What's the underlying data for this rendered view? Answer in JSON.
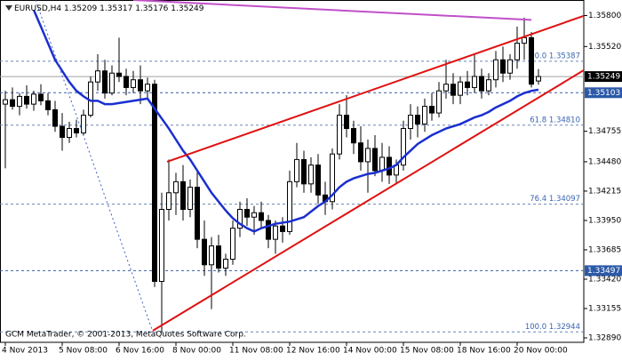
{
  "chart_data": {
    "type": "candlestick",
    "symbol": "EURUSD,H4",
    "footer": "GCM MetaTrader, © 2001-2013, MetaQuotes Software Corp.",
    "categories": [
      "4 Nov 2013",
      null,
      null,
      null,
      null,
      null,
      null,
      null,
      "5 Nov 08:00",
      null,
      null,
      null,
      null,
      null,
      null,
      null,
      "6 Nov 16:00",
      null,
      null,
      null,
      null,
      null,
      null,
      null,
      "8 Nov 00:00",
      null,
      null,
      null,
      null,
      null,
      null,
      null,
      "11 Nov 08:00",
      null,
      null,
      null,
      null,
      null,
      null,
      null,
      "12 Nov 16:00",
      null,
      null,
      null,
      null,
      null,
      null,
      null,
      "14 Nov 00:00",
      null,
      null,
      null,
      null,
      null,
      null,
      null,
      "15 Nov 08:00",
      null,
      null,
      null,
      null,
      null,
      null,
      null,
      "18 Nov 16:00",
      null,
      null,
      null,
      null,
      null,
      null,
      null,
      "20 Nov 00:00",
      null,
      null,
      null
    ],
    "open": [
      1.35,
      1.3504,
      1.3498,
      1.3507,
      1.35,
      1.3509,
      1.3503,
      1.3495,
      1.348,
      1.347,
      1.3478,
      1.3474,
      1.349,
      1.352,
      1.353,
      1.351,
      1.3528,
      1.3525,
      1.3515,
      1.3522,
      1.3512,
      1.3518,
      1.334,
      1.3405,
      1.342,
      1.343,
      1.3405,
      1.3425,
      1.3378,
      1.3355,
      1.3372,
      1.3352,
      1.336,
      1.3388,
      1.3405,
      1.3398,
      1.3402,
      1.3395,
      1.3378,
      1.339,
      1.3385,
      1.343,
      1.345,
      1.3428,
      1.3445,
      1.3418,
      1.3412,
      1.3455,
      1.349,
      1.3478,
      1.3465,
      1.3448,
      1.346,
      1.344,
      1.3452,
      1.3436,
      1.3445,
      1.3478,
      1.349,
      1.3482,
      1.3498,
      1.3492,
      1.3512,
      1.3518,
      1.3508,
      1.352,
      1.3515,
      1.3525,
      1.3512,
      1.3522,
      1.354,
      1.3528,
      1.354,
      1.3555,
      1.356,
      1.35209
    ],
    "high": [
      1.3512,
      1.3515,
      1.351,
      1.3517,
      1.3512,
      1.3518,
      1.351,
      1.3503,
      1.3492,
      1.3484,
      1.3486,
      1.3495,
      1.3525,
      1.3545,
      1.354,
      1.3535,
      1.356,
      1.3532,
      1.353,
      1.3535,
      1.3524,
      1.3522,
      1.342,
      1.345,
      1.3438,
      1.3445,
      1.3432,
      1.344,
      1.3395,
      1.338,
      1.3382,
      1.3365,
      1.3395,
      1.3412,
      1.3415,
      1.3408,
      1.3412,
      1.34,
      1.3395,
      1.3398,
      1.344,
      1.3465,
      1.3458,
      1.3452,
      1.3455,
      1.343,
      1.346,
      1.35,
      1.3508,
      1.3485,
      1.348,
      1.3468,
      1.3472,
      1.3465,
      1.3462,
      1.345,
      1.3485,
      1.35,
      1.3498,
      1.3505,
      1.351,
      1.352,
      1.354,
      1.3528,
      1.3525,
      1.353,
      1.3545,
      1.3532,
      1.3528,
      1.3548,
      1.3552,
      1.3545,
      1.357,
      1.3578,
      1.3565,
      1.35317
    ],
    "low": [
      1.3442,
      1.3495,
      1.349,
      1.3496,
      1.3494,
      1.3499,
      1.349,
      1.3475,
      1.3458,
      1.3465,
      1.347,
      1.3472,
      1.3488,
      1.3512,
      1.3505,
      1.3508,
      1.352,
      1.3508,
      1.351,
      1.35,
      1.3505,
      1.3335,
      1.3294,
      1.3395,
      1.34,
      1.3395,
      1.3398,
      1.337,
      1.3345,
      1.3315,
      1.3348,
      1.3345,
      1.3355,
      1.338,
      1.339,
      1.3382,
      1.3388,
      1.337,
      1.3365,
      1.3375,
      1.3382,
      1.3425,
      1.342,
      1.342,
      1.341,
      1.34,
      1.3405,
      1.345,
      1.347,
      1.3455,
      1.344,
      1.342,
      1.3435,
      1.343,
      1.3428,
      1.3428,
      1.344,
      1.3468,
      1.347,
      1.3475,
      1.3485,
      1.3488,
      1.3505,
      1.35,
      1.35,
      1.3508,
      1.351,
      1.3505,
      1.3508,
      1.3515,
      1.352,
      1.3522,
      1.3532,
      1.354,
      1.3515,
      1.35176
    ],
    "close": [
      1.3504,
      1.3498,
      1.3507,
      1.35,
      1.3509,
      1.3503,
      1.3495,
      1.348,
      1.347,
      1.3478,
      1.3474,
      1.349,
      1.352,
      1.353,
      1.351,
      1.3528,
      1.3525,
      1.3515,
      1.3522,
      1.3512,
      1.3518,
      1.334,
      1.3405,
      1.342,
      1.343,
      1.3405,
      1.3425,
      1.3378,
      1.3355,
      1.3372,
      1.3352,
      1.336,
      1.3388,
      1.3405,
      1.3398,
      1.3402,
      1.3395,
      1.3378,
      1.339,
      1.3385,
      1.343,
      1.345,
      1.3428,
      1.3445,
      1.3418,
      1.3412,
      1.3455,
      1.349,
      1.3478,
      1.3465,
      1.3448,
      1.346,
      1.344,
      1.3452,
      1.3436,
      1.3445,
      1.3478,
      1.349,
      1.3482,
      1.3498,
      1.3492,
      1.3512,
      1.3518,
      1.3508,
      1.352,
      1.3515,
      1.3525,
      1.3512,
      1.3522,
      1.354,
      1.3528,
      1.354,
      1.3555,
      1.356,
      1.3518,
      1.35249
    ],
    "ma": {
      "color": "#1a2fd0",
      "values": [
        null,
        null,
        null,
        null,
        1.3585,
        1.357,
        1.3555,
        1.354,
        1.353,
        1.352,
        1.3512,
        1.3507,
        1.3503,
        1.3503,
        1.35,
        1.35,
        1.3501,
        1.3502,
        1.3503,
        1.3504,
        1.3505,
        1.3496,
        1.3487,
        1.3478,
        1.3468,
        1.3458,
        1.345,
        1.344,
        1.343,
        1.342,
        1.3412,
        1.3404,
        1.3397,
        1.3392,
        1.3388,
        1.3385,
        1.3388,
        1.339,
        1.3392,
        1.3393,
        1.3394,
        1.3396,
        1.3398,
        1.3403,
        1.3408,
        1.3412,
        1.3418,
        1.3425,
        1.343,
        1.3433,
        1.3435,
        1.3437,
        1.3438,
        1.344,
        1.3442,
        1.3445,
        1.3452,
        1.3458,
        1.3464,
        1.3468,
        1.3472,
        1.3475,
        1.3478,
        1.348,
        1.3482,
        1.3485,
        1.3488,
        1.349,
        1.3493,
        1.3497,
        1.35,
        1.3503,
        1.3507,
        1.351,
        1.3512,
        1.3513
      ]
    },
    "trendlines": [
      {
        "color": "#e01010",
        "x": [
          22.75,
          81.5
        ],
        "y": [
          1.3448,
          1.358
        ]
      },
      {
        "color": "#e01010",
        "x": [
          20.75,
          81.5
        ],
        "y": [
          1.32955,
          1.35311
        ]
      },
      {
        "color": "#c050c8",
        "x": [
          18,
          74
        ],
        "y": [
          1.3594,
          1.3576
        ]
      },
      {
        "color": "#4060c0",
        "dashed": true,
        "x": [
          4.25,
          20.75
        ],
        "y": [
          1.3594,
          1.32944
        ]
      }
    ],
    "fib_levels": [
      {
        "value": 1.35387,
        "label": "50.0 1.35387"
      },
      {
        "value": 1.3481,
        "label": "61.8 1.34810"
      },
      {
        "value": 1.34097,
        "label": "76.4 1.34097"
      },
      {
        "value": 1.32944,
        "label": "100.0 1.32944"
      }
    ],
    "hlines": [
      1.35103,
      1.33497
    ],
    "ylim": [
      1.3285,
      1.3594
    ],
    "yticks": [
      {
        "value": 1.358,
        "label": "1.35800"
      },
      {
        "value": 1.3552,
        "label": "1.35520"
      },
      {
        "value": 1.34755,
        "label": "1.34755"
      },
      {
        "value": 1.3448,
        "label": "1.34480"
      },
      {
        "value": 1.34215,
        "label": "1.34215"
      },
      {
        "value": 1.3395,
        "label": "1.33950"
      },
      {
        "value": 1.33685,
        "label": "1.33685"
      },
      {
        "value": 1.3342,
        "label": "1.33420"
      },
      {
        "value": 1.33155,
        "label": "1.33155"
      },
      {
        "value": 1.3289,
        "label": "1.32890"
      }
    ]
  }
}
